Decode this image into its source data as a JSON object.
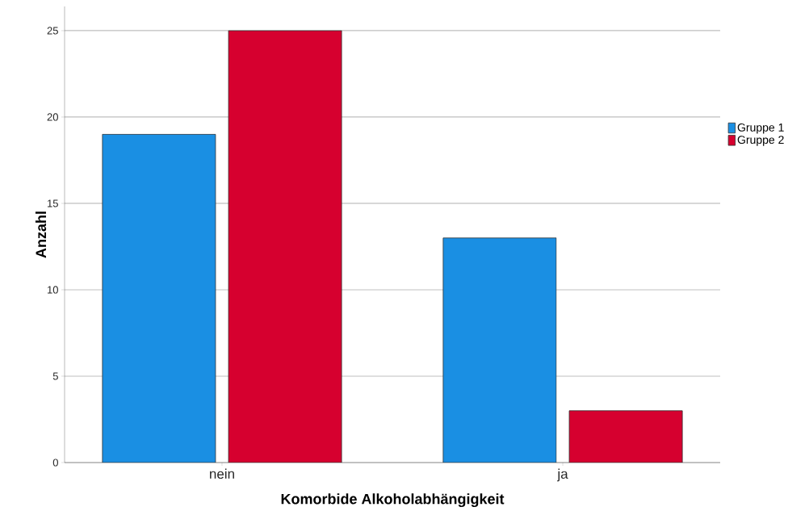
{
  "chart_data": {
    "type": "bar",
    "xlabel": "Komorbide Alkoholabhängigkeit",
    "ylabel": "Anzahl",
    "categories": [
      "nein",
      "ja"
    ],
    "series": [
      {
        "name": "Gruppe 1",
        "color": "#1a8fe3",
        "values": [
          19,
          13
        ]
      },
      {
        "name": "Gruppe 2",
        "color": "#d6002f",
        "values": [
          25,
          3
        ]
      }
    ],
    "ylim": [
      0,
      26.4
    ],
    "yticks": [
      0,
      5,
      10,
      15,
      20,
      25
    ],
    "grid": "y",
    "legend": "right"
  }
}
